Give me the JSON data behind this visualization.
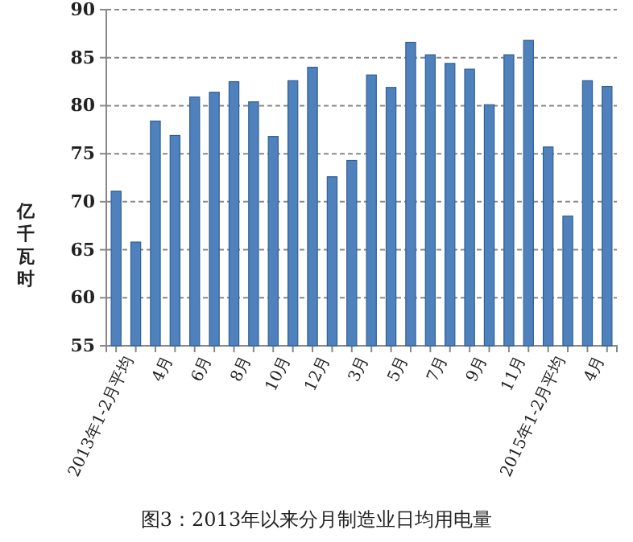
{
  "chart_data": {
    "type": "bar",
    "title": "图3：2013年以来分月制造业日均用电量",
    "ylabel": "亿千瓦时",
    "categories": [
      "2013年1-2月平均",
      null,
      "4月",
      null,
      "6月",
      null,
      "8月",
      null,
      "10月",
      null,
      "12月",
      null,
      "3月",
      null,
      "5月",
      null,
      "7月",
      null,
      "9月",
      null,
      "11月",
      null,
      "2015年1-2月平均",
      null,
      "4月",
      null
    ],
    "values": [
      71.1,
      65.8,
      78.4,
      76.9,
      80.9,
      81.4,
      82.5,
      80.4,
      76.8,
      82.6,
      84.0,
      72.6,
      74.3,
      83.2,
      81.9,
      86.6,
      85.3,
      84.4,
      83.8,
      80.1,
      85.3,
      86.8,
      75.7,
      68.5,
      82.6,
      82.0
    ],
    "color": "#4f81bd",
    "ylim": [
      55,
      90
    ],
    "yticks": [
      55,
      60,
      65,
      70,
      75,
      80,
      85,
      90
    ],
    "grid": "y"
  }
}
